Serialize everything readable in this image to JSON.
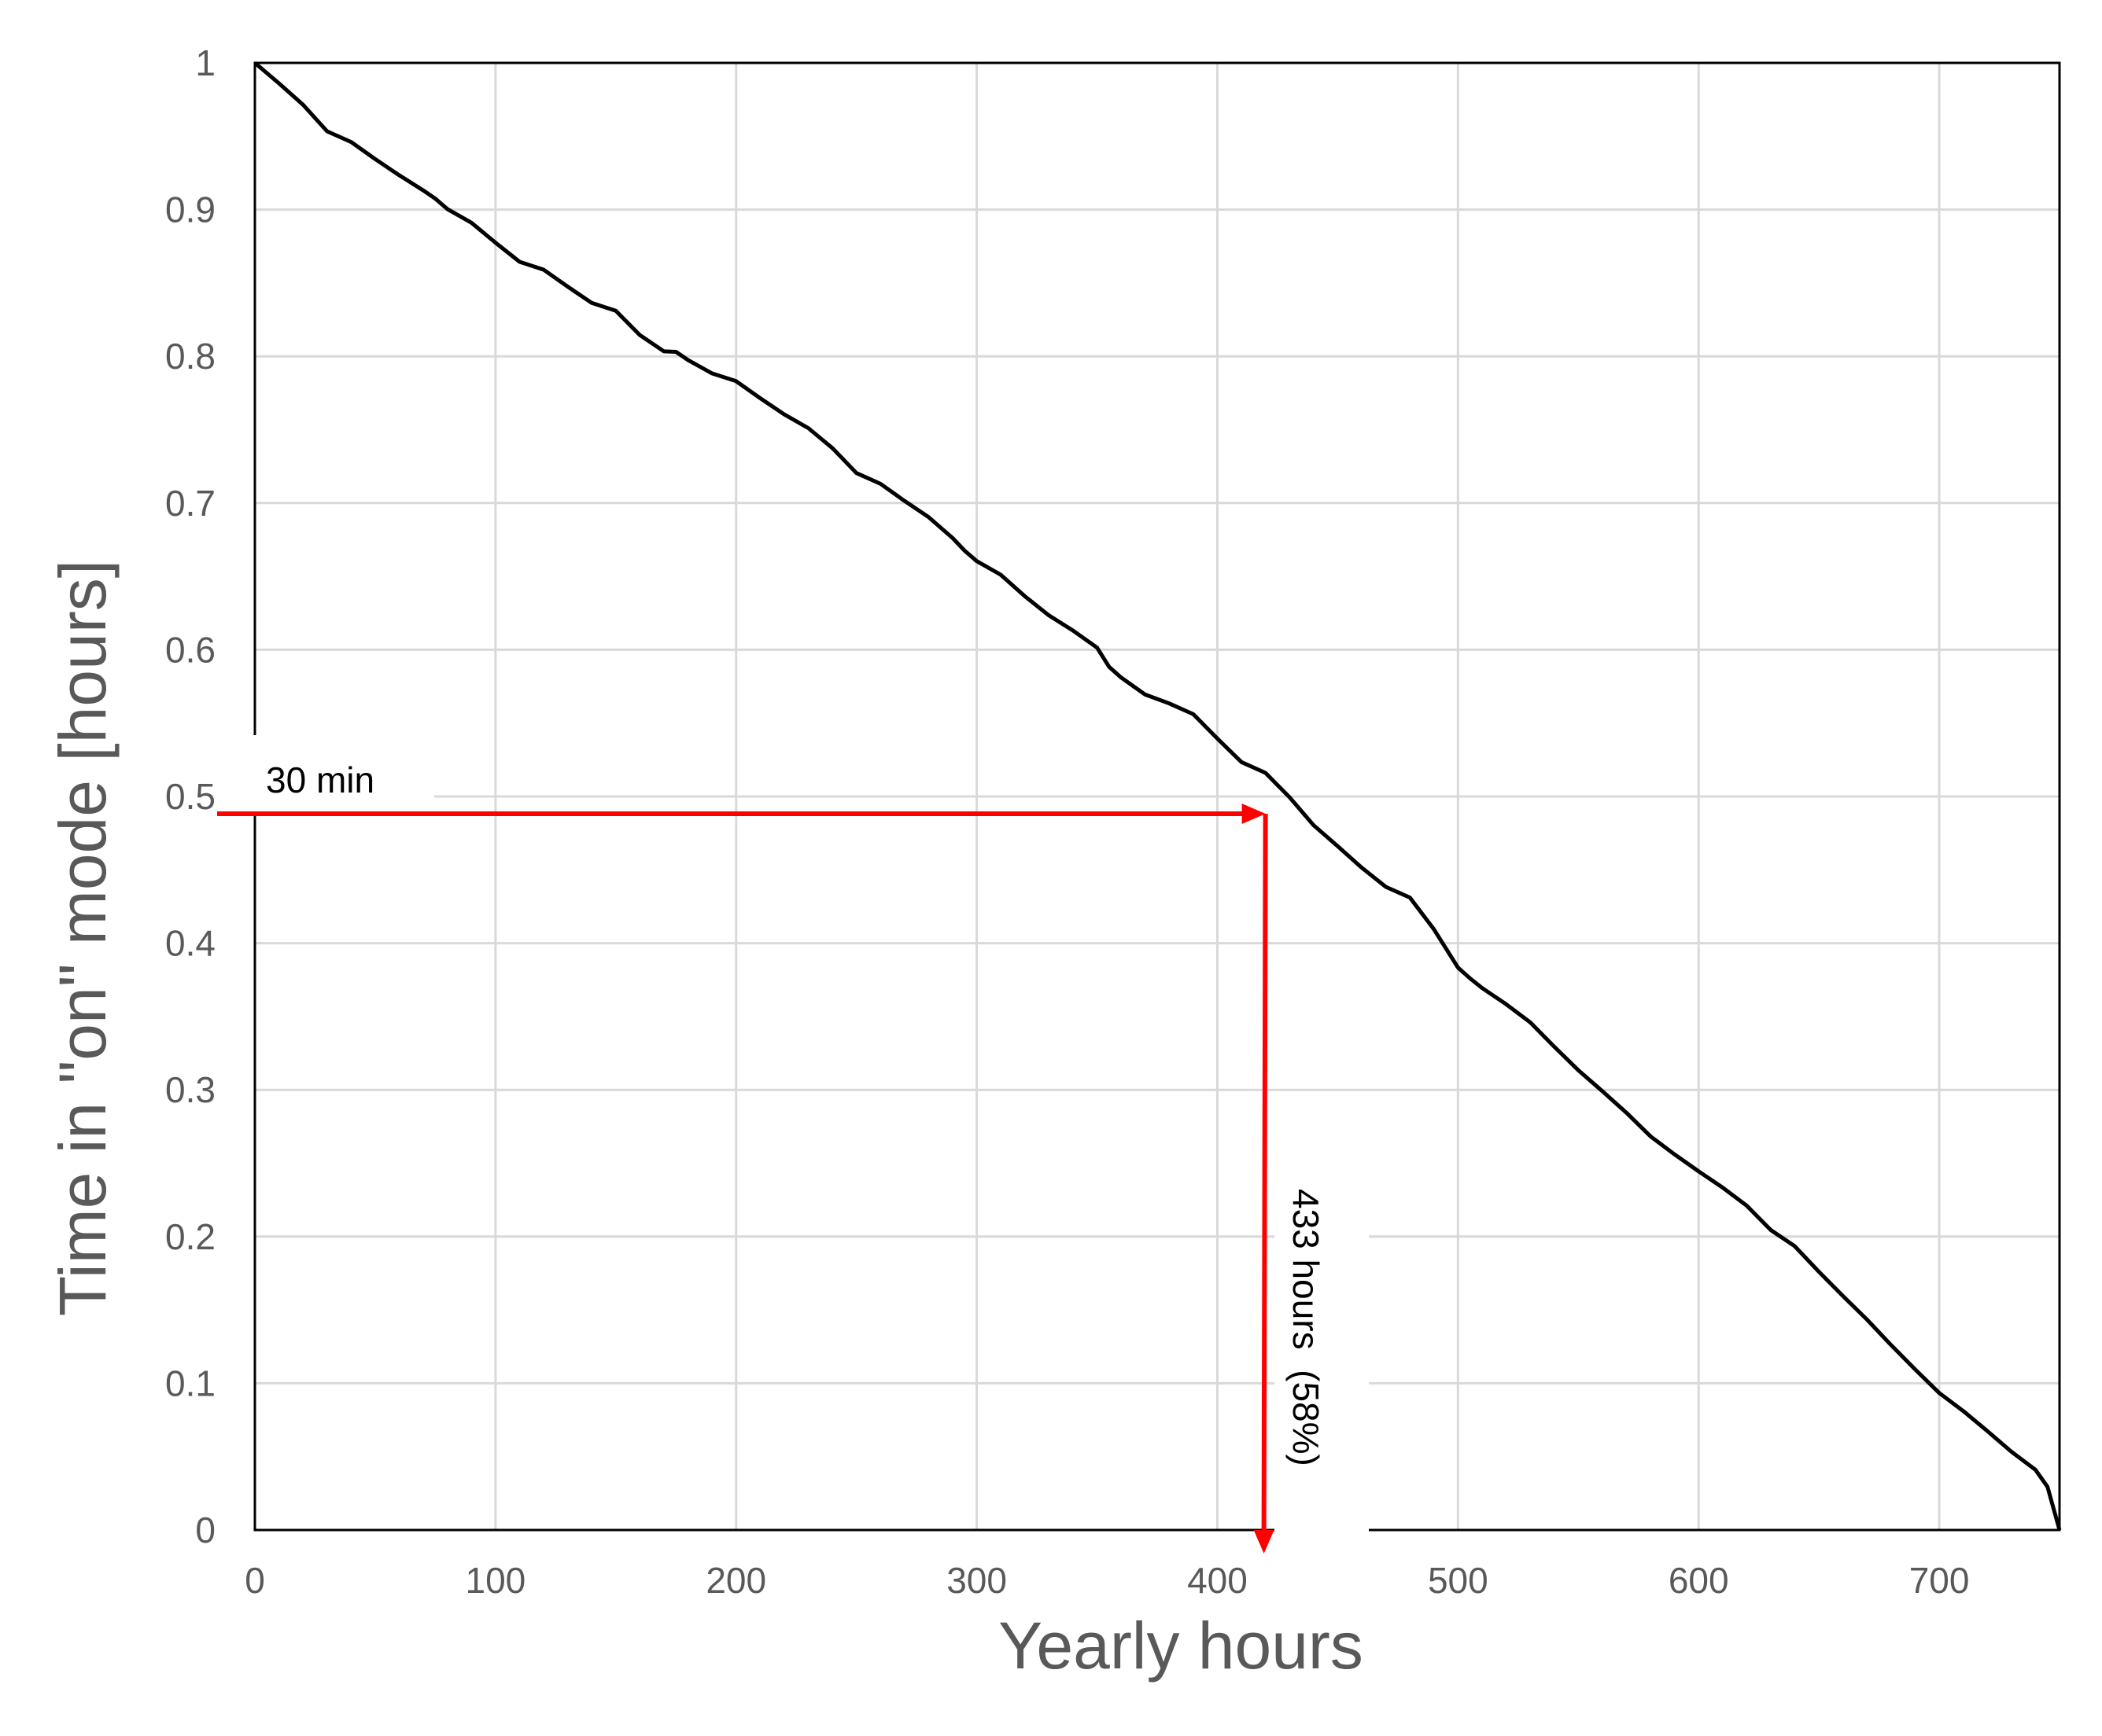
{
  "chart_data": {
    "type": "line",
    "xlabel": "Yearly hours",
    "ylabel": "Time in \"on\" mode [hours]",
    "xlim": [
      0,
      750
    ],
    "ylim": [
      0,
      1
    ],
    "grid": true,
    "x_ticks": [
      "0",
      "100",
      "200",
      "300",
      "400",
      "500",
      "600",
      "700"
    ],
    "y_ticks": [
      "0",
      "0.1",
      "0.2",
      "0.3",
      "0.4",
      "0.5",
      "0.6",
      "0.7",
      "0.8",
      "0.9",
      "1"
    ],
    "series": [
      {
        "color": "#000000",
        "x": [
          0,
          10,
          20,
          30,
          40,
          50,
          60,
          70,
          75,
          80,
          90,
          100,
          110,
          120,
          130,
          140,
          150,
          160,
          170,
          175,
          180,
          190,
          200,
          210,
          220,
          230,
          240,
          250,
          260,
          270,
          280,
          290,
          295,
          300,
          310,
          320,
          330,
          340,
          350,
          355,
          360,
          370,
          380,
          390,
          400,
          410,
          420,
          430,
          440,
          450,
          460,
          470,
          480,
          490,
          500,
          505,
          510,
          520,
          530,
          540,
          550,
          560,
          570,
          580,
          590,
          600,
          610,
          620,
          630,
          640,
          650,
          660,
          670,
          680,
          690,
          700,
          710,
          720,
          730,
          740,
          745,
          750
        ],
        "y": [
          1.0,
          0.985,
          0.972,
          0.955,
          0.945,
          0.935,
          0.925,
          0.912,
          0.908,
          0.902,
          0.89,
          0.878,
          0.866,
          0.858,
          0.848,
          0.838,
          0.83,
          0.815,
          0.805,
          0.802,
          0.798,
          0.79,
          0.782,
          0.772,
          0.762,
          0.75,
          0.738,
          0.722,
          0.712,
          0.702,
          0.692,
          0.675,
          0.668,
          0.662,
          0.65,
          0.637,
          0.625,
          0.612,
          0.602,
          0.59,
          0.58,
          0.57,
          0.565,
          0.555,
          0.54,
          0.525,
          0.515,
          0.5,
          0.482,
          0.465,
          0.452,
          0.44,
          0.43,
          0.41,
          0.385,
          0.375,
          0.37,
          0.36,
          0.345,
          0.33,
          0.315,
          0.298,
          0.285,
          0.27,
          0.255,
          0.245,
          0.235,
          0.22,
          0.205,
          0.195,
          0.175,
          0.16,
          0.145,
          0.125,
          0.11,
          0.095,
          0.08,
          0.068,
          0.055,
          0.04,
          0.03,
          0.0
        ]
      }
    ],
    "annotations": [
      {
        "text": "30 min",
        "y_value": 0.5,
        "color": "#ff0000"
      },
      {
        "text": "433 hours  (58%)",
        "x_value": 420,
        "color": "#ff0000"
      }
    ]
  }
}
